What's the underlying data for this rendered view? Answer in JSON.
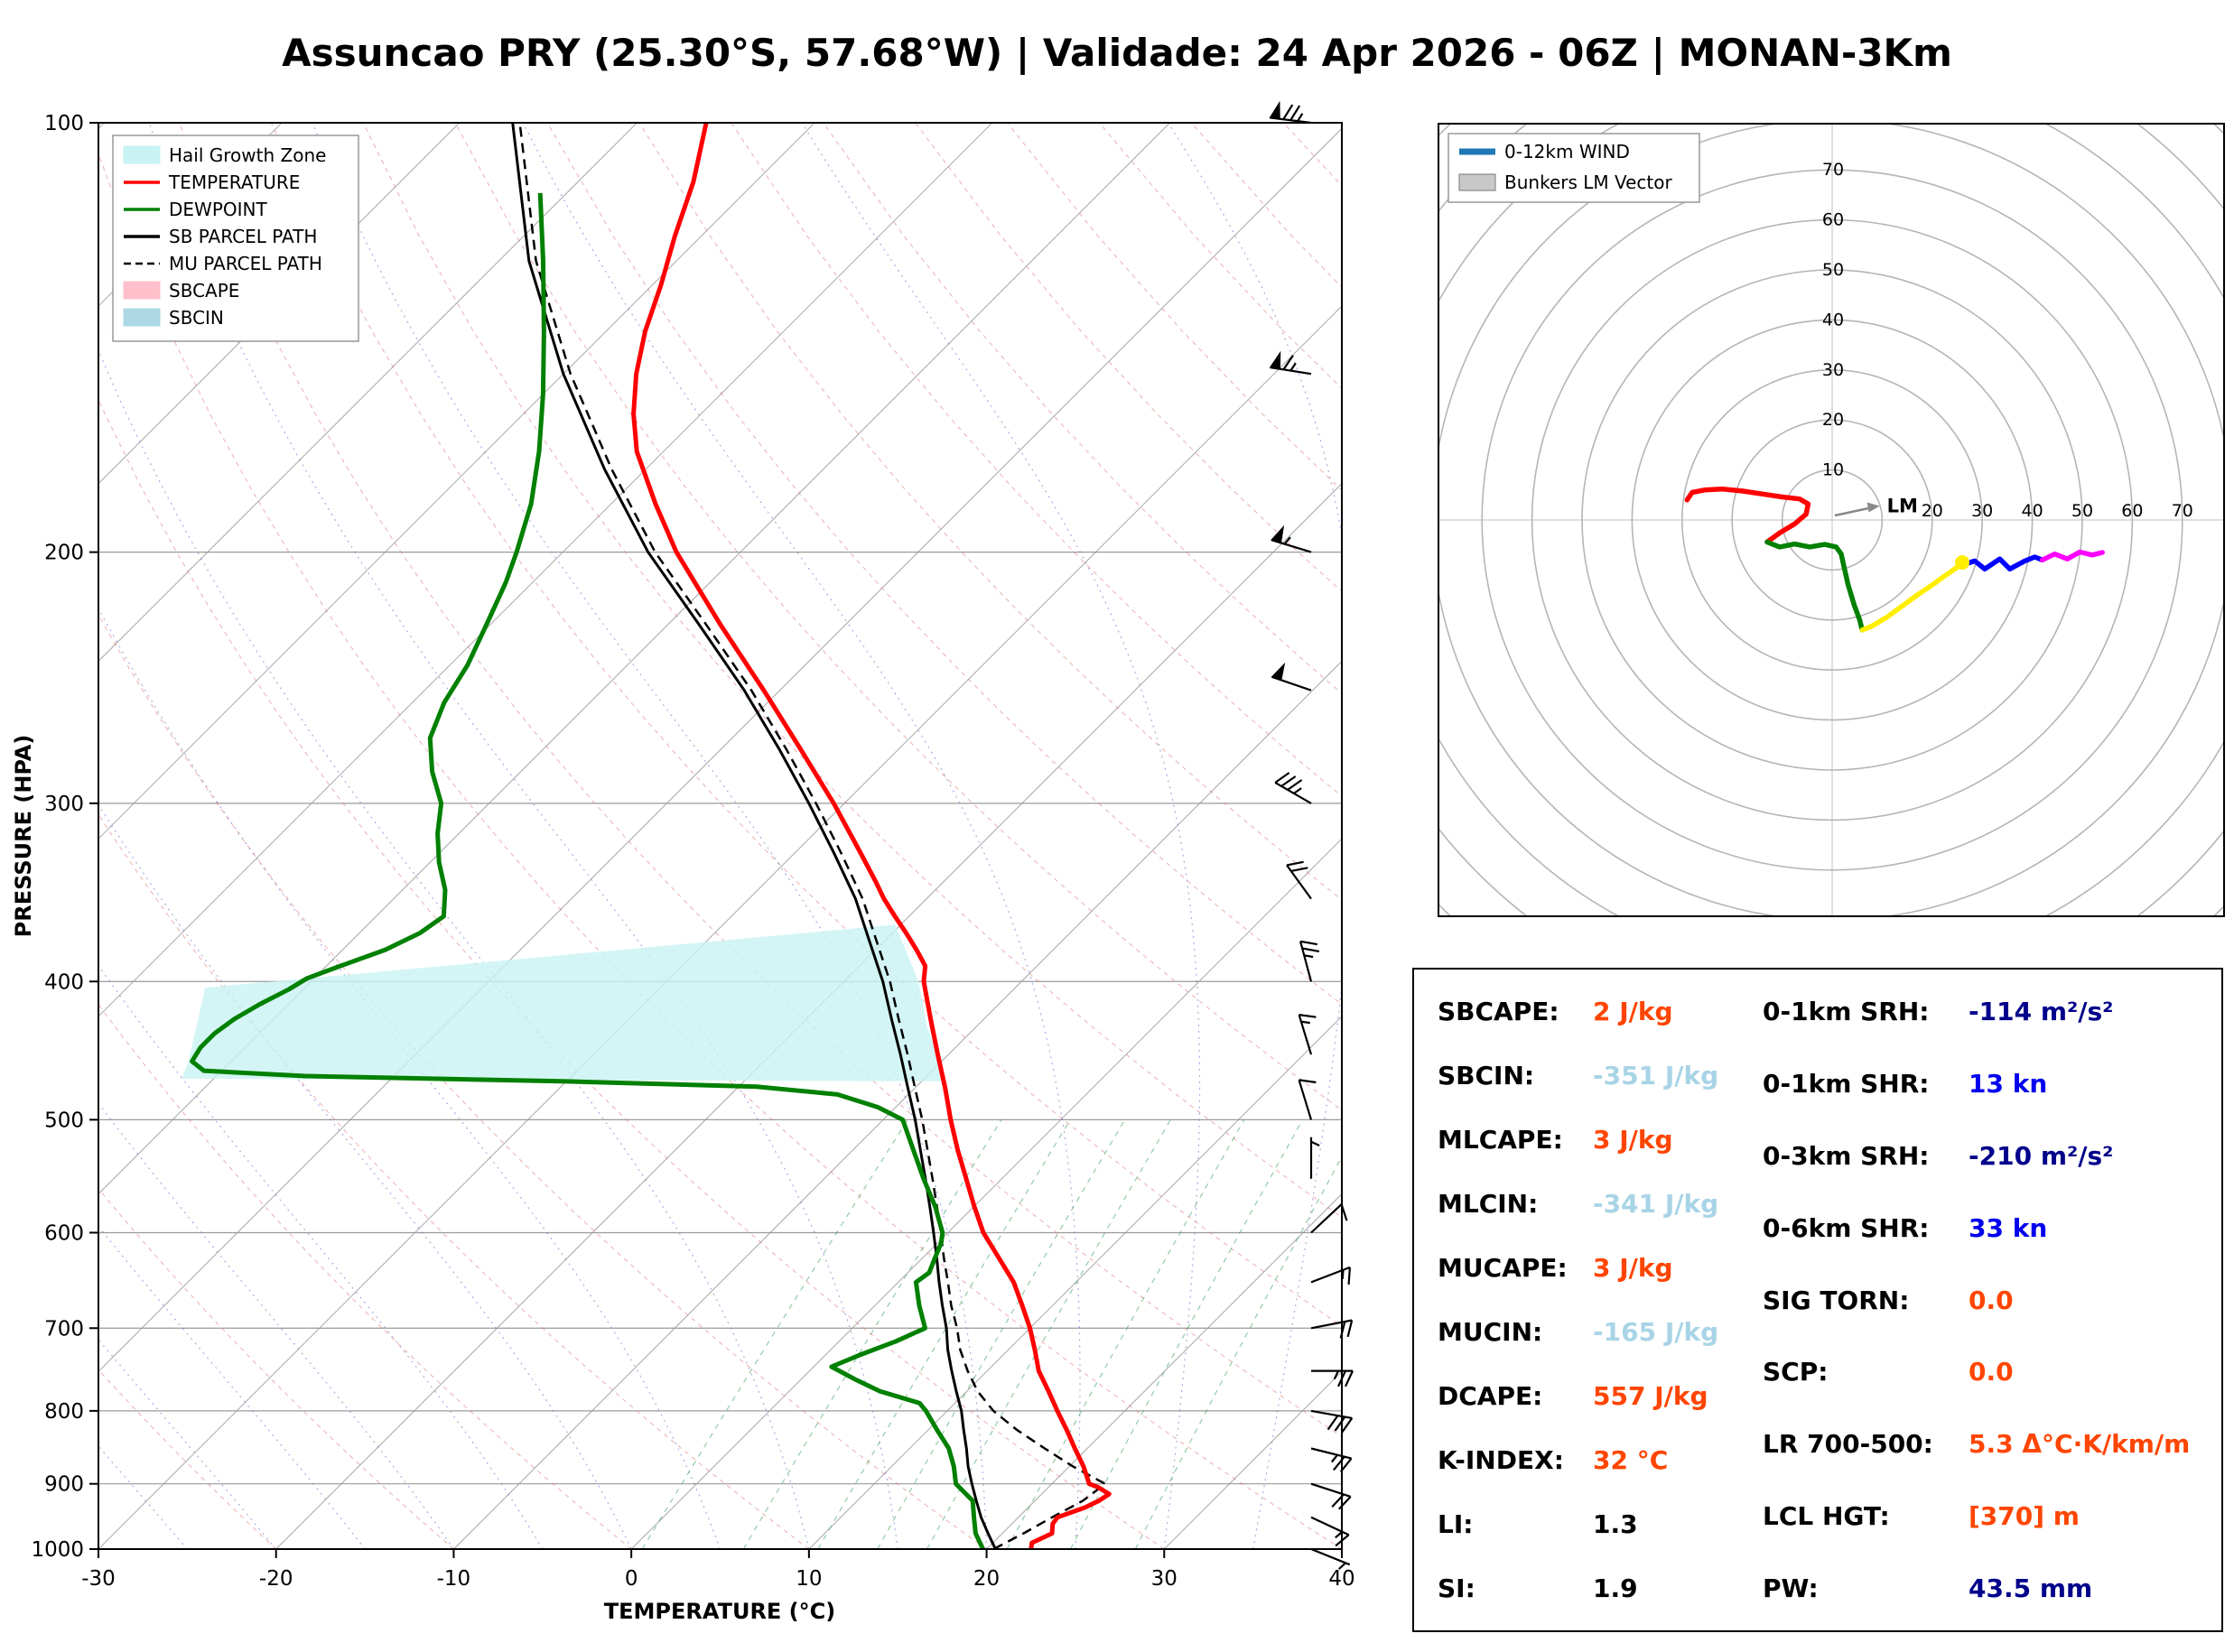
{
  "title": "Assuncao PRY (25.30°S, 57.68°W) | Validade: 24 Apr 2026 - 06Z | MONAN-3Km",
  "colors": {
    "temperature": "#ff0000",
    "dewpoint": "#008000",
    "parcel": "#000000",
    "hail_zone_fill": "#c9f2f2",
    "sbcape_fill": "#ffc0cb",
    "sbcin_fill": "#add8e6",
    "grid": "#9a9a9a",
    "dry_adiabat": "#dd7777",
    "moist_adiabat": "#6666cc",
    "mixing_ratio": "#3aa05a",
    "frame": "#000000",
    "ring": "#b5b5b5",
    "ring_label": "#a0a0a0",
    "lm_gray": "#888888"
  },
  "chart_data": [
    {
      "type": "skewt",
      "xlabel": "TEMPERATURE (°C)",
      "ylabel": "PRESSURE (HPA)",
      "xlim": [
        -30,
        40
      ],
      "plim": [
        100,
        1000
      ],
      "x_ticks": [
        -30,
        -20,
        -10,
        0,
        10,
        20,
        30,
        40
      ],
      "p_ticks": [
        100,
        200,
        300,
        400,
        500,
        600,
        700,
        800,
        900,
        1000
      ],
      "legend": [
        {
          "label": "Hail Growth Zone",
          "glyph": "patch",
          "color": "#c9f2f2"
        },
        {
          "label": "TEMPERATURE",
          "glyph": "line",
          "color": "#ff0000"
        },
        {
          "label": "DEWPOINT",
          "glyph": "line",
          "color": "#008000"
        },
        {
          "label": "SB PARCEL PATH",
          "glyph": "line",
          "color": "#000000"
        },
        {
          "label": "MU PARCEL PATH",
          "glyph": "dashed-line",
          "color": "#000000"
        },
        {
          "label": "SBCAPE",
          "glyph": "patch",
          "color": "#ffc0cb"
        },
        {
          "label": "SBCIN",
          "glyph": "patch",
          "color": "#add8e6"
        }
      ],
      "temperature_profile": [
        [
          1000,
          22.5
        ],
        [
          990,
          22.2
        ],
        [
          975,
          22.8
        ],
        [
          960,
          22.3
        ],
        [
          950,
          22.2
        ],
        [
          935,
          23.2
        ],
        [
          925,
          23.6
        ],
        [
          915,
          23.8
        ],
        [
          905,
          22.8
        ],
        [
          900,
          22.1
        ],
        [
          875,
          20.8
        ],
        [
          850,
          19.3
        ],
        [
          825,
          17.8
        ],
        [
          800,
          16.2
        ],
        [
          775,
          14.6
        ],
        [
          750,
          12.9
        ],
        [
          725,
          11.5
        ],
        [
          700,
          10.0
        ],
        [
          675,
          8.3
        ],
        [
          650,
          6.5
        ],
        [
          625,
          4.3
        ],
        [
          600,
          2.0
        ],
        [
          575,
          0.0
        ],
        [
          550,
          -2.0
        ],
        [
          525,
          -4.1
        ],
        [
          500,
          -6.2
        ],
        [
          475,
          -8.3
        ],
        [
          450,
          -10.6
        ],
        [
          425,
          -13.0
        ],
        [
          400,
          -15.5
        ],
        [
          390,
          -16.3
        ],
        [
          380,
          -17.7
        ],
        [
          370,
          -19.2
        ],
        [
          360,
          -20.8
        ],
        [
          350,
          -22.4
        ],
        [
          340,
          -23.9
        ],
        [
          325,
          -26.3
        ],
        [
          300,
          -30.6
        ],
        [
          275,
          -35.5
        ],
        [
          250,
          -40.9
        ],
        [
          225,
          -47.0
        ],
        [
          200,
          -53.6
        ],
        [
          185,
          -57.5
        ],
        [
          170,
          -61.5
        ],
        [
          160,
          -63.8
        ],
        [
          150,
          -65.9
        ],
        [
          140,
          -67.8
        ],
        [
          130,
          -69.5
        ],
        [
          120,
          -71.5
        ],
        [
          110,
          -73.5
        ],
        [
          100,
          -76.1
        ]
      ],
      "dewpoint_profile": [
        [
          1000,
          19.8
        ],
        [
          975,
          18.5
        ],
        [
          950,
          17.5
        ],
        [
          925,
          16.5
        ],
        [
          900,
          14.6
        ],
        [
          875,
          13.5
        ],
        [
          850,
          12.2
        ],
        [
          825,
          10.5
        ],
        [
          800,
          8.8
        ],
        [
          790,
          8.0
        ],
        [
          775,
          5.1
        ],
        [
          760,
          3.0
        ],
        [
          745,
          1.0
        ],
        [
          730,
          2.0
        ],
        [
          715,
          3.2
        ],
        [
          700,
          4.1
        ],
        [
          675,
          2.5
        ],
        [
          650,
          1.0
        ],
        [
          640,
          1.2
        ],
        [
          625,
          0.7
        ],
        [
          610,
          0.2
        ],
        [
          600,
          -0.3
        ],
        [
          575,
          -2.2
        ],
        [
          550,
          -4.4
        ],
        [
          525,
          -6.6
        ],
        [
          500,
          -8.9
        ],
        [
          490,
          -11.0
        ],
        [
          480,
          -14.0
        ],
        [
          474,
          -19.0
        ],
        [
          470,
          -30.0
        ],
        [
          466,
          -45.0
        ],
        [
          462,
          -51.0
        ],
        [
          455,
          -52.2
        ],
        [
          445,
          -52.5
        ],
        [
          435,
          -52.5
        ],
        [
          425,
          -52.2
        ],
        [
          415,
          -51.6
        ],
        [
          405,
          -50.8
        ],
        [
          398,
          -50.4
        ],
        [
          390,
          -49.2
        ],
        [
          380,
          -47.6
        ],
        [
          370,
          -46.6
        ],
        [
          360,
          -46.2
        ],
        [
          345,
          -47.6
        ],
        [
          330,
          -49.5
        ],
        [
          315,
          -51.2
        ],
        [
          300,
          -52.7
        ],
        [
          285,
          -55.0
        ],
        [
          270,
          -57.0
        ],
        [
          255,
          -58.2
        ],
        [
          240,
          -59.0
        ],
        [
          225,
          -60.2
        ],
        [
          210,
          -61.5
        ],
        [
          200,
          -62.6
        ],
        [
          185,
          -64.5
        ],
        [
          170,
          -67.0
        ],
        [
          155,
          -70.0
        ],
        [
          140,
          -73.5
        ],
        [
          125,
          -77.5
        ],
        [
          112,
          -81.5
        ]
      ],
      "sb_parcel_path": [
        [
          1000,
          20.5
        ],
        [
          975,
          19.2
        ],
        [
          950,
          17.9
        ],
        [
          925,
          16.7
        ],
        [
          900,
          15.5
        ],
        [
          875,
          14.3
        ],
        [
          850,
          13.2
        ],
        [
          825,
          12.0
        ],
        [
          800,
          10.8
        ],
        [
          775,
          9.4
        ],
        [
          750,
          8.0
        ],
        [
          725,
          6.6
        ],
        [
          700,
          5.3
        ],
        [
          675,
          3.8
        ],
        [
          650,
          2.3
        ],
        [
          625,
          0.8
        ],
        [
          600,
          -0.8
        ],
        [
          575,
          -2.5
        ],
        [
          550,
          -4.3
        ],
        [
          525,
          -6.2
        ],
        [
          500,
          -8.2
        ],
        [
          475,
          -10.4
        ],
        [
          450,
          -12.7
        ],
        [
          425,
          -15.2
        ],
        [
          400,
          -17.8
        ],
        [
          375,
          -20.8
        ],
        [
          350,
          -24.0
        ],
        [
          325,
          -27.8
        ],
        [
          300,
          -32.0
        ],
        [
          275,
          -36.7
        ],
        [
          250,
          -42.0
        ],
        [
          225,
          -48.2
        ],
        [
          200,
          -55.2
        ],
        [
          175,
          -62.3
        ],
        [
          150,
          -70.0
        ],
        [
          125,
          -78.3
        ],
        [
          100,
          -87.0
        ]
      ],
      "mu_parcel_path": [
        [
          1000,
          20.4
        ],
        [
          975,
          21.2
        ],
        [
          950,
          21.9
        ],
        [
          925,
          22.7
        ],
        [
          900,
          23.0
        ],
        [
          875,
          20.2
        ],
        [
          850,
          17.6
        ],
        [
          825,
          15.0
        ],
        [
          800,
          12.6
        ],
        [
          775,
          10.6
        ],
        [
          750,
          8.9
        ],
        [
          725,
          7.3
        ],
        [
          700,
          5.9
        ],
        [
          675,
          4.3
        ],
        [
          650,
          2.8
        ],
        [
          625,
          1.2
        ],
        [
          600,
          -0.4
        ],
        [
          575,
          -2.1
        ],
        [
          550,
          -3.9
        ],
        [
          525,
          -5.8
        ],
        [
          500,
          -7.8
        ],
        [
          475,
          -10.0
        ],
        [
          450,
          -12.3
        ],
        [
          425,
          -14.8
        ],
        [
          400,
          -17.4
        ],
        [
          375,
          -20.4
        ],
        [
          350,
          -23.6
        ],
        [
          325,
          -27.4
        ],
        [
          300,
          -31.6
        ],
        [
          275,
          -36.3
        ],
        [
          250,
          -41.6
        ],
        [
          225,
          -47.8
        ],
        [
          200,
          -54.8
        ],
        [
          175,
          -61.9
        ],
        [
          150,
          -69.6
        ],
        [
          125,
          -77.9
        ],
        [
          100,
          -86.6
        ]
      ],
      "hail_growth_zone": [
        [
          365,
          -20.3
        ],
        [
          400,
          -15.8
        ],
        [
          430,
          -12.8
        ],
        [
          450,
          -10.6
        ],
        [
          470,
          -8.7
        ],
        [
          468,
          -51.8
        ],
        [
          455,
          -52.4
        ],
        [
          404,
          -55.6
        ]
      ],
      "wind_barbs": [
        [
          1000,
          6,
          112
        ],
        [
          950,
          13,
          115
        ],
        [
          900,
          19,
          108
        ],
        [
          850,
          25,
          104
        ],
        [
          800,
          28,
          100
        ],
        [
          750,
          27,
          90
        ],
        [
          700,
          21,
          79
        ],
        [
          650,
          14,
          69
        ],
        [
          600,
          8,
          47
        ],
        [
          550,
          5,
          0
        ],
        [
          500,
          10,
          343
        ],
        [
          450,
          17,
          343
        ],
        [
          400,
          23,
          345
        ],
        [
          350,
          22,
          324
        ],
        [
          300,
          35,
          300
        ],
        [
          250,
          50,
          289
        ],
        [
          200,
          55,
          287
        ],
        [
          150,
          65,
          279
        ],
        [
          100,
          75,
          277
        ]
      ]
    },
    {
      "type": "hodograph",
      "legend": [
        {
          "label": "0-12km WIND",
          "glyph": "line",
          "color": "#1f77b4"
        },
        {
          "label": "Bunkers LM Vector",
          "glyph": "patch",
          "color": "#c8c8c8"
        }
      ],
      "rings_kt": [
        10,
        20,
        30,
        40,
        50,
        60,
        70,
        80,
        90,
        100,
        110
      ],
      "axis_labels_up": [
        10,
        20,
        30,
        40,
        50,
        60,
        70
      ],
      "axis_labels_right": [
        20,
        30,
        40,
        50,
        60,
        70
      ],
      "trace_segments": [
        {
          "color": "#ff0000",
          "points": [
            [
              -29,
              4
            ],
            [
              -28,
              5.5
            ],
            [
              -25.5,
              6
            ],
            [
              -22,
              6.2
            ],
            [
              -18,
              5.8
            ],
            [
              -14,
              5.2
            ],
            [
              -10,
              4.6
            ],
            [
              -6.5,
              4.2
            ],
            [
              -4.8,
              3.2
            ],
            [
              -5.2,
              1.2
            ],
            [
              -7.5,
              -0.8
            ],
            [
              -10.5,
              -2.6
            ],
            [
              -13,
              -4.4
            ]
          ]
        },
        {
          "color": "#008000",
          "points": [
            [
              -13,
              -4.4
            ],
            [
              -10.5,
              -5.4
            ],
            [
              -7.5,
              -4.8
            ],
            [
              -4.5,
              -5.4
            ],
            [
              -1.5,
              -4.9
            ],
            [
              0.8,
              -5.4
            ],
            [
              1.8,
              -6.8
            ],
            [
              2.4,
              -9.5
            ],
            [
              3.2,
              -13
            ],
            [
              4.4,
              -17
            ],
            [
              5.5,
              -20
            ],
            [
              6,
              -22
            ]
          ]
        },
        {
          "color": "#ffee00",
          "points": [
            [
              6,
              -22
            ],
            [
              8,
              -21.2
            ],
            [
              11,
              -19.4
            ],
            [
              14,
              -17.2
            ],
            [
              17,
              -15
            ],
            [
              20,
              -13
            ],
            [
              22.5,
              -11.2
            ],
            [
              24.5,
              -9.8
            ],
            [
              26,
              -8.8
            ]
          ]
        },
        {
          "color": "#0000ff",
          "points": [
            [
              26,
              -9
            ],
            [
              28.5,
              -8.2
            ],
            [
              30.5,
              -9.8
            ],
            [
              33.5,
              -7.8
            ],
            [
              35.5,
              -9.8
            ],
            [
              38.5,
              -8.2
            ],
            [
              40.5,
              -7.4
            ],
            [
              42,
              -8
            ]
          ]
        },
        {
          "color": "#ff00ff",
          "points": [
            [
              42,
              -8
            ],
            [
              44.5,
              -6.8
            ],
            [
              47,
              -7.8
            ],
            [
              49.5,
              -6.4
            ],
            [
              52,
              -7
            ],
            [
              54,
              -6.5
            ]
          ]
        }
      ],
      "dot": {
        "u": 26,
        "v": -8.5,
        "color": "#ffee00"
      },
      "marker": {
        "label": "LM",
        "u": 9.5,
        "v": 2.8
      }
    }
  ],
  "indices": {
    "left": [
      {
        "label": "SBCAPE:",
        "value": "2 J/kg",
        "color": "#ff4500"
      },
      {
        "label": "SBCIN:",
        "value": "-351 J/kg",
        "color": "#a8d4e6"
      },
      {
        "label": "MLCAPE:",
        "value": "3 J/kg",
        "color": "#ff4500"
      },
      {
        "label": "MLCIN:",
        "value": "-341 J/kg",
        "color": "#a8d4e6"
      },
      {
        "label": "MUCAPE:",
        "value": "3 J/kg",
        "color": "#ff4500"
      },
      {
        "label": "MUCIN:",
        "value": "-165 J/kg",
        "color": "#a8d4e6"
      },
      {
        "label": "DCAPE:",
        "value": "557 J/kg",
        "color": "#ff4500"
      },
      {
        "label": "K-INDEX:",
        "value": "32 °C",
        "color": "#ff4500"
      },
      {
        "label": "LI:",
        "value": "1.3",
        "color": "#000000"
      },
      {
        "label": "SI:",
        "value": "1.9",
        "color": "#000000"
      }
    ],
    "right": [
      {
        "label": "0-1km SRH:",
        "value": "-114 m²/s²",
        "color": "#00008b"
      },
      {
        "label": "0-1km SHR:",
        "value": "13 kn",
        "color": "#0000ee"
      },
      {
        "label": "0-3km SRH:",
        "value": "-210 m²/s²",
        "color": "#00008b"
      },
      {
        "label": "0-6km SHR:",
        "value": "33 kn",
        "color": "#0000ee"
      },
      {
        "label": "SIG TORN:",
        "value": "0.0",
        "color": "#ff4500"
      },
      {
        "label": "SCP:",
        "value": "0.0",
        "color": "#ff4500"
      },
      {
        "label": "LR 700-500:",
        "value": "5.3 Δ°C·K/km/m",
        "color": "#ff4500"
      },
      {
        "label": "LCL HGT:",
        "value": "[370] m",
        "color": "#ff4500"
      },
      {
        "label": "PW:",
        "value": "43.5 mm",
        "color": "#00008b"
      }
    ]
  }
}
